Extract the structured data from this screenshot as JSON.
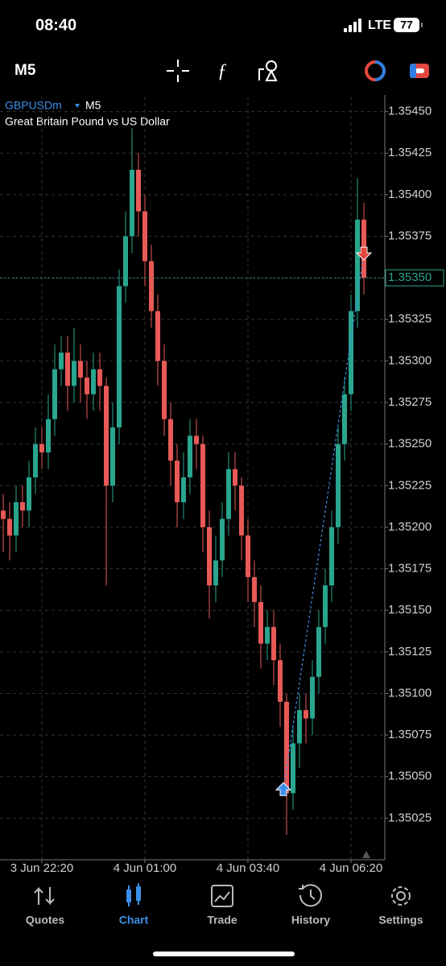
{
  "status_bar": {
    "time": "08:40",
    "network": "LTE",
    "battery": "77"
  },
  "toolbar": {
    "timeframe": "M5"
  },
  "chart_data": {
    "type": "candlestick",
    "symbol": "GBPUSDm",
    "timeframe": "M5",
    "description": "Great Britain Pound vs US Dollar",
    "up_color": "#2aa58e",
    "down_color": "#e85a57",
    "grid": true,
    "open": [
      1.3521,
      1.35205,
      1.35195,
      1.35215,
      1.3521,
      1.3523,
      1.3525,
      1.35245,
      1.35265,
      1.35295,
      1.35305,
      1.35285,
      1.353,
      1.3529,
      1.3528,
      1.35295,
      1.35285,
      1.35225,
      1.3526,
      1.35345,
      1.35375,
      1.35415,
      1.3539,
      1.3536,
      1.3533,
      1.353,
      1.35265,
      1.3524,
      1.35215,
      1.3523,
      1.35255,
      1.3525,
      1.352,
      1.35165,
      1.3518,
      1.35205,
      1.35235,
      1.35225,
      1.35195,
      1.3517,
      1.35155,
      1.3513,
      1.3514,
      1.3512,
      1.35095,
      1.3504,
      1.3507,
      1.3509,
      1.35085,
      1.3511,
      1.3514,
      1.35165,
      1.352,
      1.3525,
      1.3528,
      1.3533,
      1.35385
    ],
    "high": [
      1.3522,
      1.35215,
      1.35225,
      1.35225,
      1.3524,
      1.3526,
      1.3526,
      1.3528,
      1.3531,
      1.35315,
      1.35315,
      1.3532,
      1.3531,
      1.353,
      1.35305,
      1.35305,
      1.3529,
      1.35275,
      1.35355,
      1.3539,
      1.3544,
      1.35425,
      1.354,
      1.3537,
      1.3534,
      1.3531,
      1.35275,
      1.3525,
      1.35245,
      1.35265,
      1.35265,
      1.35255,
      1.3521,
      1.35195,
      1.35215,
      1.35245,
      1.35245,
      1.3523,
      1.35205,
      1.3518,
      1.35165,
      1.3515,
      1.3515,
      1.3513,
      1.351,
      1.3508,
      1.351,
      1.351,
      1.3512,
      1.3515,
      1.35175,
      1.3521,
      1.3526,
      1.3529,
      1.3534,
      1.3541,
      1.35395
    ],
    "low": [
      1.35185,
      1.3518,
      1.35185,
      1.352,
      1.352,
      1.3522,
      1.35235,
      1.35235,
      1.35255,
      1.35285,
      1.3527,
      1.35275,
      1.35275,
      1.35265,
      1.3527,
      1.3527,
      1.35165,
      1.35215,
      1.3525,
      1.35335,
      1.35365,
      1.35375,
      1.35345,
      1.3532,
      1.35285,
      1.35255,
      1.35225,
      1.352,
      1.35205,
      1.3522,
      1.35235,
      1.35185,
      1.35145,
      1.35155,
      1.3517,
      1.35195,
      1.3521,
      1.3518,
      1.35155,
      1.3514,
      1.35115,
      1.3512,
      1.35105,
      1.3508,
      1.35015,
      1.3503,
      1.35055,
      1.3507,
      1.35075,
      1.351,
      1.3513,
      1.35155,
      1.3519,
      1.3524,
      1.3527,
      1.3532,
      1.3534
    ],
    "close": [
      1.35205,
      1.35195,
      1.35215,
      1.3521,
      1.3523,
      1.3525,
      1.35245,
      1.35265,
      1.35295,
      1.35305,
      1.35285,
      1.353,
      1.3529,
      1.3528,
      1.35295,
      1.35285,
      1.35225,
      1.3526,
      1.35345,
      1.35375,
      1.35415,
      1.3539,
      1.3536,
      1.3533,
      1.353,
      1.35265,
      1.3524,
      1.35215,
      1.3523,
      1.35255,
      1.3525,
      1.352,
      1.35165,
      1.3518,
      1.35205,
      1.35235,
      1.35225,
      1.35195,
      1.3517,
      1.35155,
      1.3513,
      1.3514,
      1.3512,
      1.35095,
      1.3504,
      1.3507,
      1.3509,
      1.35085,
      1.3511,
      1.3514,
      1.35165,
      1.352,
      1.3525,
      1.3528,
      1.3533,
      1.35385,
      1.3535
    ],
    "ylim": [
      1.35,
      1.35459
    ],
    "yticks": [
      {
        "value": 1.35025,
        "label": "1.35025"
      },
      {
        "value": 1.3505,
        "label": "1.35050"
      },
      {
        "value": 1.35075,
        "label": "1.35075"
      },
      {
        "value": 1.351,
        "label": "1.35100"
      },
      {
        "value": 1.35125,
        "label": "1.35125"
      },
      {
        "value": 1.3515,
        "label": "1.35150"
      },
      {
        "value": 1.35175,
        "label": "1.35175"
      },
      {
        "value": 1.352,
        "label": "1.35200"
      },
      {
        "value": 1.35225,
        "label": "1.35225"
      },
      {
        "value": 1.3525,
        "label": "1.35250"
      },
      {
        "value": 1.35275,
        "label": "1.35275"
      },
      {
        "value": 1.353,
        "label": "1.35300"
      },
      {
        "value": 1.35325,
        "label": "1.35325"
      },
      {
        "value": 1.3535,
        "label": "1.35350"
      },
      {
        "value": 1.35375,
        "label": "1.35375"
      },
      {
        "value": 1.354,
        "label": "1.35400"
      },
      {
        "value": 1.35425,
        "label": "1.35425"
      },
      {
        "value": 1.3545,
        "label": "1.35450"
      }
    ],
    "xticks": [
      {
        "value": 6,
        "label": "3 Jun 22:20"
      },
      {
        "value": 22,
        "label": "4 Jun 01:00"
      },
      {
        "value": 38,
        "label": "4 Jun 03:40"
      },
      {
        "value": 54,
        "label": "4 Jun 06:20"
      }
    ],
    "last_price": {
      "value": 1.3535,
      "label": "1.35350"
    },
    "entry": {
      "x": 43.5,
      "price": 1.35042
    },
    "exit": {
      "x": 56,
      "price": 1.35365
    }
  },
  "nav": {
    "items": [
      {
        "label": "Quotes"
      },
      {
        "label": "Chart"
      },
      {
        "label": "Trade"
      },
      {
        "label": "History"
      },
      {
        "label": "Settings"
      }
    ],
    "active": 1
  }
}
